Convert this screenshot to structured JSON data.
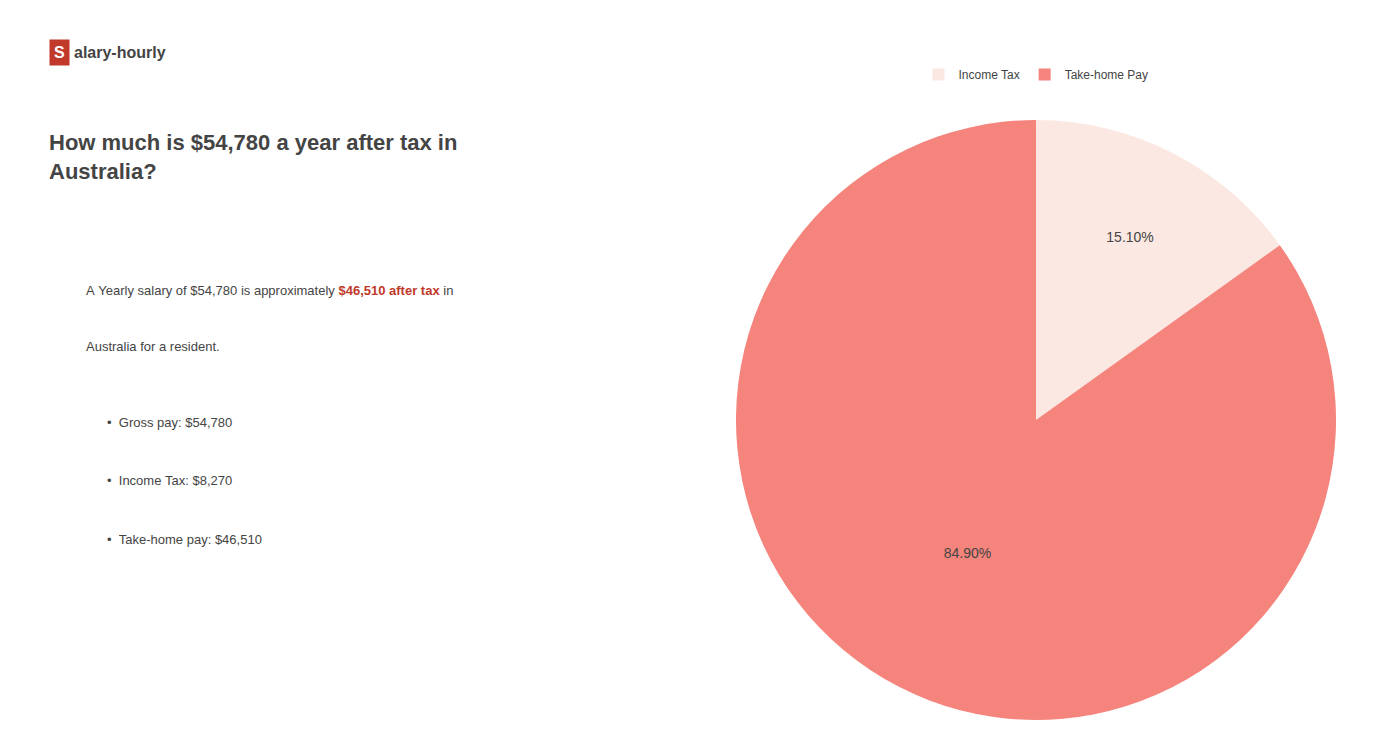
{
  "chart_data": {
    "type": "pie",
    "title": "How much is $54,780 a year after tax in\nAustralia?",
    "categories": [
      "Income Tax",
      "Take-home Pay"
    ],
    "values": [
      15.1,
      84.9
    ],
    "value_labels": [
      "15.10%",
      "84.90%"
    ],
    "colors": [
      "#fce8e2",
      "#f4847c"
    ],
    "data_labels": true,
    "legend": "top",
    "annotations": [
      {
        "text": "S",
        "color": "#c0392b"
      },
      {
        "text": "alary-hourly"
      },
      {
        "text": "A Yearly salary of $54,780 is approximately "
      },
      {
        "text": "$46,510 after tax",
        "color": "#c0392b"
      },
      {
        "text": " in"
      },
      {
        "text": "Australia for a resident."
      },
      {
        "text": "•  Gross pay: $54,780"
      },
      {
        "text": "•  Income Tax: $8,270"
      },
      {
        "text": "•  Take-home pay: $46,510"
      }
    ]
  }
}
